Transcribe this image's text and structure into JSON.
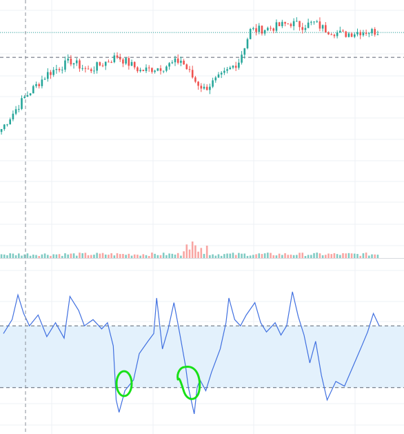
{
  "colors": {
    "background": "#ffffff",
    "grid": "#eef0f4",
    "up": "#26a69a",
    "down": "#ef5350",
    "volume_up": "#80cbc4",
    "volume_down": "#f8a5a2",
    "indicator_line": "#3f6fe0",
    "indicator_band": "#e3f1fc",
    "reference_line": "#5b6270",
    "price_line": "#26a69a",
    "crosshair": "#8a8f99",
    "annotation": "#18e018"
  },
  "chart_data": [
    {
      "type": "candlestick",
      "title": "",
      "grid": true,
      "price_line_level": 82.6,
      "reference_level": 80.0,
      "ylim": [
        60,
        86
      ],
      "trend_anchors": [
        [
          0,
          72.5
        ],
        [
          8,
          75.8
        ],
        [
          16,
          78.3
        ],
        [
          24,
          79.6
        ],
        [
          30,
          78.6
        ],
        [
          40,
          80.1
        ],
        [
          48,
          78.6
        ],
        [
          56,
          79.0
        ],
        [
          62,
          79.7
        ],
        [
          67,
          77.5
        ],
        [
          70,
          76.7
        ],
        [
          76,
          78.0
        ],
        [
          82,
          79.6
        ],
        [
          86,
          82.8
        ],
        [
          92,
          83.0
        ],
        [
          100,
          83.6
        ],
        [
          104,
          83.3
        ],
        [
          108,
          83.6
        ],
        [
          112,
          82.9
        ],
        [
          118,
          82.4
        ],
        [
          124,
          82.7
        ],
        [
          130,
          82.7
        ]
      ],
      "candle_count": 131
    },
    {
      "type": "bar",
      "title": "",
      "series_name": "",
      "values_note": "",
      "spike_index": 66
    },
    {
      "type": "line",
      "title": "",
      "ylim": [
        0,
        100
      ],
      "band": [
        30,
        70
      ],
      "levels": [
        70,
        30
      ],
      "points": [
        [
          0,
          65
        ],
        [
          3,
          74
        ],
        [
          5,
          90
        ],
        [
          7,
          78
        ],
        [
          9,
          70
        ],
        [
          12,
          77
        ],
        [
          15,
          63
        ],
        [
          18,
          72
        ],
        [
          21,
          62
        ],
        [
          23,
          89
        ],
        [
          26,
          80
        ],
        [
          28,
          70
        ],
        [
          31,
          74
        ],
        [
          34,
          68
        ],
        [
          36,
          72
        ],
        [
          38,
          57
        ],
        [
          39,
          22
        ],
        [
          40,
          14
        ],
        [
          42,
          28
        ],
        [
          45,
          35
        ],
        [
          47,
          52
        ],
        [
          50,
          60
        ],
        [
          52,
          65
        ],
        [
          53,
          88
        ],
        [
          55,
          55
        ],
        [
          57,
          68
        ],
        [
          59,
          85
        ],
        [
          61,
          65
        ],
        [
          63,
          44
        ],
        [
          64,
          30
        ],
        [
          66,
          13
        ],
        [
          67,
          30
        ],
        [
          68,
          35
        ],
        [
          70,
          28
        ],
        [
          72,
          40
        ],
        [
          75,
          55
        ],
        [
          77,
          72
        ],
        [
          78,
          88
        ],
        [
          80,
          74
        ],
        [
          82,
          70
        ],
        [
          84,
          77
        ],
        [
          87,
          85
        ],
        [
          89,
          72
        ],
        [
          91,
          66
        ],
        [
          94,
          72
        ],
        [
          96,
          64
        ],
        [
          98,
          70
        ],
        [
          100,
          92
        ],
        [
          102,
          76
        ],
        [
          104,
          64
        ],
        [
          106,
          46
        ],
        [
          108,
          60
        ],
        [
          110,
          38
        ],
        [
          112,
          22
        ],
        [
          115,
          34
        ],
        [
          118,
          31
        ],
        [
          121,
          44
        ],
        [
          124,
          57
        ],
        [
          126,
          66
        ],
        [
          128,
          78
        ],
        [
          130,
          70
        ]
      ]
    }
  ]
}
